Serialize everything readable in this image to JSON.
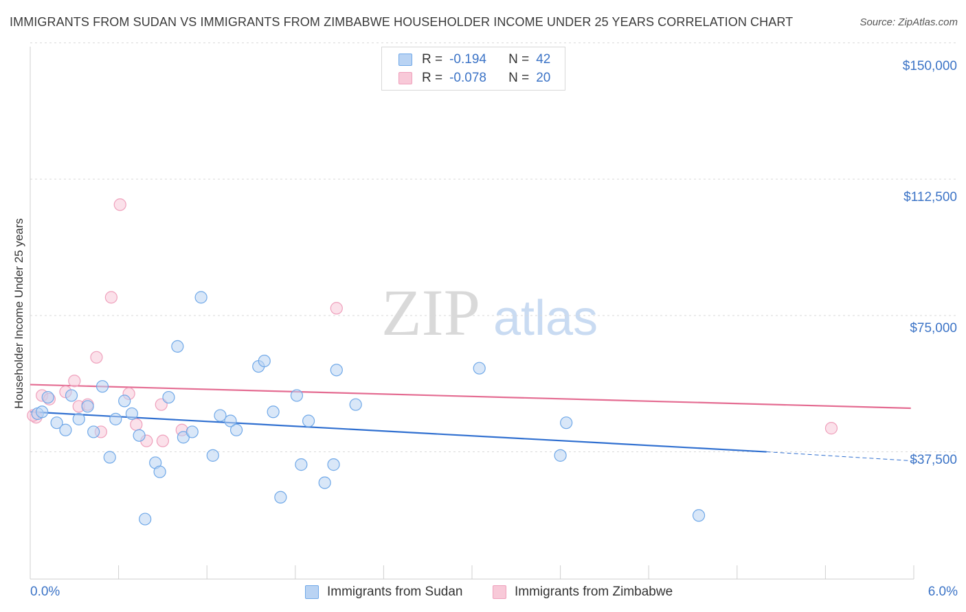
{
  "chart_data": {
    "type": "scatter",
    "title": "IMMIGRANTS FROM SUDAN VS IMMIGRANTS FROM ZIMBABWE HOUSEHOLDER INCOME UNDER 25 YEARS CORRELATION CHART",
    "source": "Source: ZipAtlas.com",
    "ylabel": "Householder Income Under 25 years",
    "xlim": [
      0,
      6
    ],
    "ylim": [
      2500,
      155000
    ],
    "y_ticks": [
      {
        "value": 150000,
        "label": "$150,000"
      },
      {
        "value": 112500,
        "label": "$112,500"
      },
      {
        "value": 75000,
        "label": "$75,000"
      },
      {
        "value": 37500,
        "label": "$37,500"
      }
    ],
    "x_tick_labels": {
      "min": "0.0%",
      "max": "6.0%"
    },
    "legend_stats": [
      {
        "r_label": "R =",
        "r_value": "-0.194",
        "n_label": "N =",
        "n_value": "42"
      },
      {
        "r_label": "R =",
        "r_value": "-0.078",
        "n_label": "N =",
        "n_value": "20"
      }
    ],
    "series": [
      {
        "name": "Immigrants from Sudan",
        "color": "#6fa8e8",
        "fill": "#b9d3f3",
        "trend": {
          "x0": 0.0,
          "y0": 48500,
          "x1": 5.0,
          "y1": 37500,
          "dash_to_x": 6.0,
          "dash_to_y": 35000,
          "color": "#2f6fd0"
        },
        "points": [
          {
            "x": 0.05,
            "y": 48000
          },
          {
            "x": 0.08,
            "y": 48500
          },
          {
            "x": 0.12,
            "y": 52500
          },
          {
            "x": 0.18,
            "y": 45500
          },
          {
            "x": 0.24,
            "y": 43500
          },
          {
            "x": 0.33,
            "y": 46500
          },
          {
            "x": 0.28,
            "y": 53000
          },
          {
            "x": 0.39,
            "y": 50000
          },
          {
            "x": 0.43,
            "y": 43000
          },
          {
            "x": 0.49,
            "y": 55500
          },
          {
            "x": 0.54,
            "y": 36000
          },
          {
            "x": 0.58,
            "y": 46500
          },
          {
            "x": 0.64,
            "y": 51500
          },
          {
            "x": 0.69,
            "y": 48000
          },
          {
            "x": 0.74,
            "y": 42000
          },
          {
            "x": 0.78,
            "y": 19000
          },
          {
            "x": 0.85,
            "y": 34500
          },
          {
            "x": 0.88,
            "y": 32000
          },
          {
            "x": 0.94,
            "y": 52500
          },
          {
            "x": 1.0,
            "y": 66500
          },
          {
            "x": 1.04,
            "y": 41500
          },
          {
            "x": 1.1,
            "y": 43000
          },
          {
            "x": 1.16,
            "y": 80000
          },
          {
            "x": 1.24,
            "y": 36500
          },
          {
            "x": 1.29,
            "y": 47500
          },
          {
            "x": 1.36,
            "y": 46000
          },
          {
            "x": 1.4,
            "y": 43500
          },
          {
            "x": 1.55,
            "y": 61000
          },
          {
            "x": 1.59,
            "y": 62500
          },
          {
            "x": 1.65,
            "y": 48500
          },
          {
            "x": 1.7,
            "y": 25000
          },
          {
            "x": 1.81,
            "y": 53000
          },
          {
            "x": 1.84,
            "y": 34000
          },
          {
            "x": 1.89,
            "y": 46000
          },
          {
            "x": 2.0,
            "y": 29000
          },
          {
            "x": 2.06,
            "y": 34000
          },
          {
            "x": 2.08,
            "y": 60000
          },
          {
            "x": 2.21,
            "y": 50500
          },
          {
            "x": 3.05,
            "y": 60500
          },
          {
            "x": 3.6,
            "y": 36500
          },
          {
            "x": 3.64,
            "y": 45500
          },
          {
            "x": 4.54,
            "y": 20000
          }
        ]
      },
      {
        "name": "Immigrants from Zimbabwe",
        "color": "#ef9fbb",
        "fill": "#f8c9d8",
        "trend": {
          "x0": 0.0,
          "y0": 56000,
          "x1": 5.98,
          "y1": 49500,
          "color": "#e46b91"
        },
        "points": [
          {
            "x": 0.04,
            "y": 47000
          },
          {
            "x": 0.08,
            "y": 53000
          },
          {
            "x": 0.13,
            "y": 52000
          },
          {
            "x": 0.24,
            "y": 54000
          },
          {
            "x": 0.3,
            "y": 57000
          },
          {
            "x": 0.33,
            "y": 50000
          },
          {
            "x": 0.39,
            "y": 50500
          },
          {
            "x": 0.45,
            "y": 63500
          },
          {
            "x": 0.48,
            "y": 43000
          },
          {
            "x": 0.55,
            "y": 80000
          },
          {
            "x": 0.61,
            "y": 105500
          },
          {
            "x": 0.67,
            "y": 53500
          },
          {
            "x": 0.72,
            "y": 45000
          },
          {
            "x": 0.79,
            "y": 40500
          },
          {
            "x": 0.89,
            "y": 50500
          },
          {
            "x": 0.9,
            "y": 40500
          },
          {
            "x": 1.03,
            "y": 43500
          },
          {
            "x": 2.08,
            "y": 77000
          },
          {
            "x": 5.44,
            "y": 44000
          },
          {
            "x": 0.02,
            "y": 47500
          }
        ]
      }
    ]
  },
  "watermark": {
    "zip": "ZIP",
    "atlas": "atlas"
  }
}
